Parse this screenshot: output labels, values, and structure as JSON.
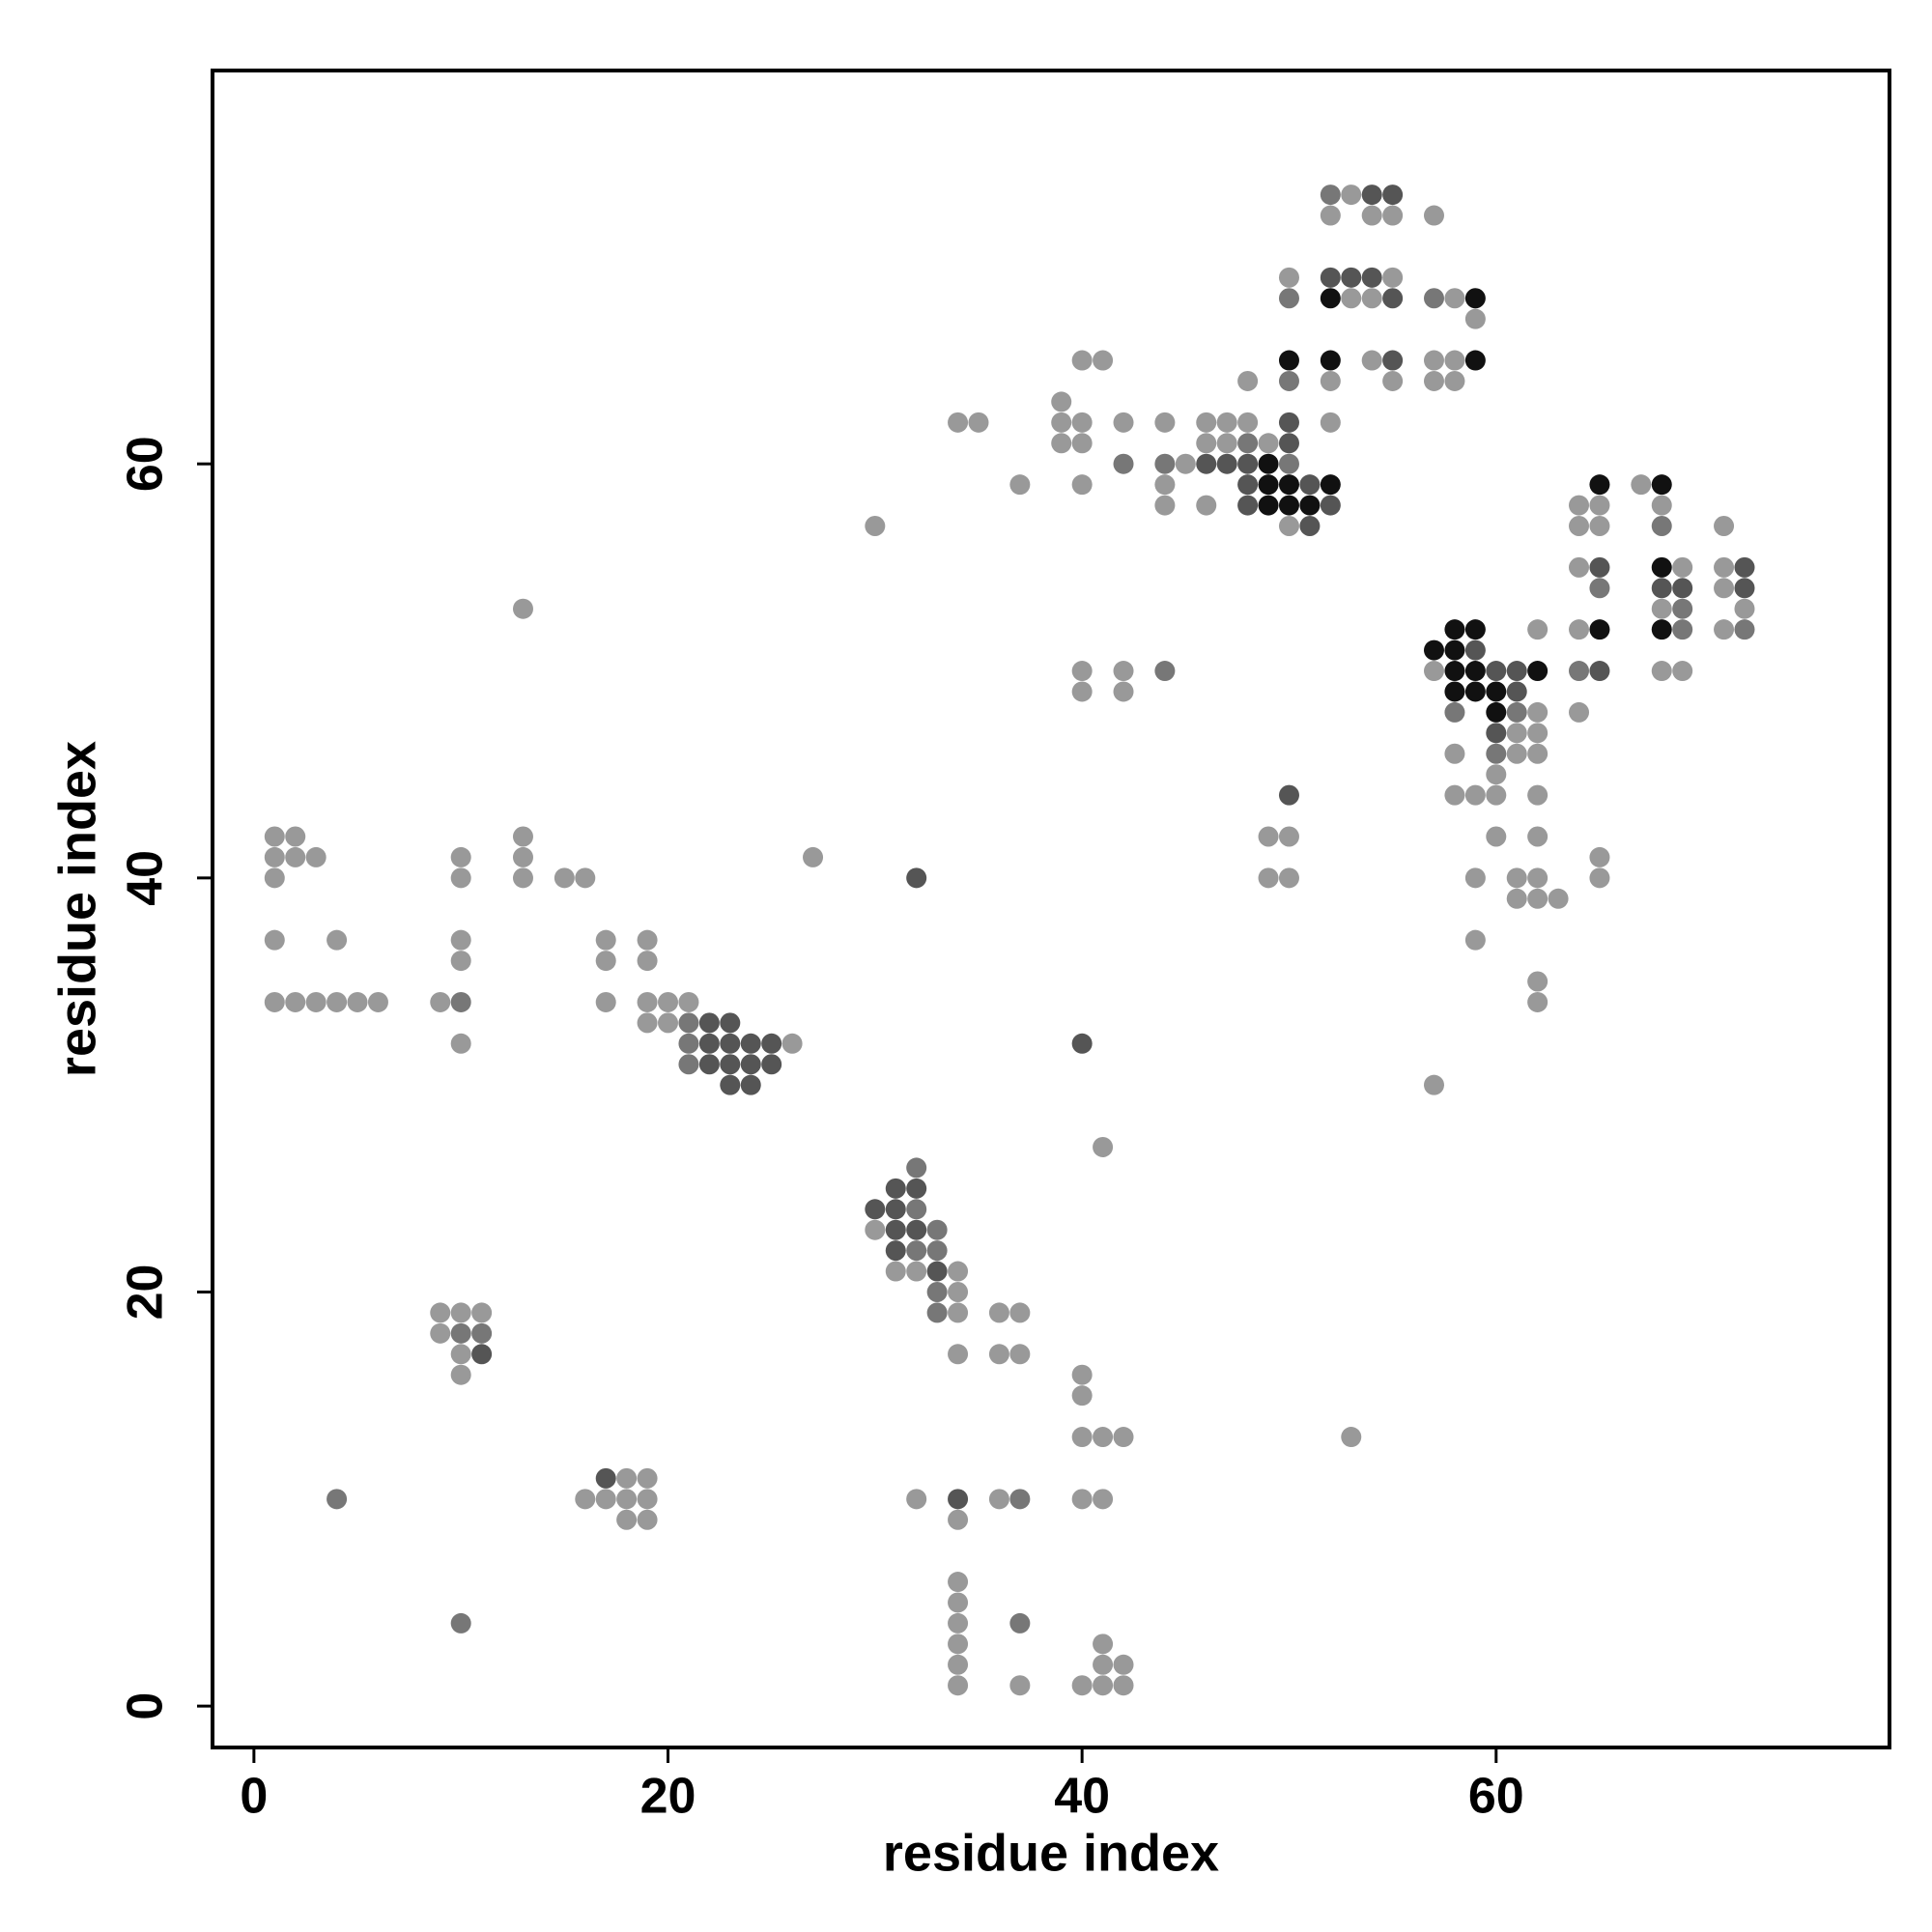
{
  "chart_data": {
    "type": "scatter",
    "x_label": "residue index",
    "y_label": "residue index",
    "xlim": [
      -2,
      79
    ],
    "ylim": [
      -2,
      79
    ],
    "xticks": [
      0,
      20,
      40,
      60
    ],
    "yticks": [
      0,
      20,
      40,
      60
    ],
    "series": [
      {
        "color": "#999999",
        "x": [
          1,
          2,
          3,
          4,
          5,
          6,
          1,
          4,
          1,
          1,
          2,
          3,
          1,
          2,
          9,
          10,
          10,
          10,
          10,
          10,
          13,
          13,
          13,
          13,
          15,
          16,
          17,
          17,
          17,
          19,
          19,
          19,
          19,
          20,
          20,
          21,
          26,
          27,
          30,
          9,
          10,
          11,
          9,
          10,
          10,
          16,
          17,
          18,
          19,
          18,
          19,
          18,
          19,
          30,
          31,
          32,
          34,
          34,
          34,
          34,
          36,
          36,
          37,
          37,
          32,
          34,
          36,
          34,
          34,
          34,
          34,
          34,
          34,
          37,
          40,
          40,
          40,
          41,
          42,
          40,
          41,
          41,
          40,
          41,
          41,
          41,
          42,
          42,
          53,
          57,
          34,
          35,
          37,
          39,
          39,
          39,
          40,
          41,
          40,
          40,
          40,
          42,
          40,
          40,
          42,
          42,
          44,
          44,
          44,
          45,
          46,
          46,
          46,
          47,
          47,
          48,
          48,
          49,
          49,
          49,
          50,
          50,
          50,
          50,
          52,
          52,
          52,
          53,
          53,
          54,
          54,
          54,
          55,
          55,
          55,
          57,
          57,
          57,
          57,
          58,
          58,
          58,
          58,
          58,
          59,
          59,
          59,
          59,
          60,
          60,
          60,
          61,
          61,
          61,
          61,
          62,
          62,
          62,
          62,
          62,
          62,
          62,
          62,
          62,
          62,
          63,
          64,
          64,
          64,
          64,
          64,
          65,
          65,
          65,
          65,
          67,
          68,
          68,
          68,
          69,
          69,
          71,
          71,
          71,
          71,
          72
        ],
        "y": [
          34,
          34,
          34,
          34,
          34,
          34,
          37,
          37,
          40,
          41,
          41,
          41,
          42,
          42,
          34,
          32,
          36,
          37,
          40,
          41,
          40,
          41,
          42,
          53,
          40,
          40,
          34,
          36,
          37,
          36,
          37,
          34,
          33,
          34,
          33,
          34,
          32,
          41,
          57,
          19,
          19,
          19,
          18,
          17,
          16,
          10,
          10,
          10,
          10,
          11,
          11,
          9,
          9,
          23,
          21,
          21,
          21,
          20,
          19,
          17,
          19,
          17,
          19,
          17,
          10,
          9,
          10,
          6,
          5,
          4,
          3,
          2,
          1,
          1,
          16,
          15,
          13,
          13,
          13,
          10,
          10,
          27,
          1,
          1,
          2,
          3,
          1,
          2,
          13,
          30,
          62,
          62,
          59,
          63,
          62,
          61,
          65,
          65,
          62,
          61,
          59,
          62,
          50,
          49,
          50,
          49,
          62,
          59,
          58,
          60,
          62,
          61,
          58,
          62,
          61,
          64,
          62,
          61,
          42,
          40,
          69,
          57,
          42,
          40,
          72,
          64,
          62,
          73,
          68,
          72,
          68,
          65,
          72,
          69,
          64,
          72,
          65,
          64,
          50,
          68,
          65,
          64,
          46,
          44,
          67,
          44,
          40,
          37,
          45,
          44,
          42,
          47,
          46,
          40,
          39,
          52,
          48,
          47,
          46,
          44,
          42,
          40,
          39,
          35,
          34,
          39,
          58,
          57,
          55,
          52,
          48,
          58,
          57,
          41,
          40,
          59,
          58,
          53,
          50,
          55,
          50,
          57,
          55,
          54,
          52,
          53
        ]
      },
      {
        "color": "#777777",
        "x": [
          10,
          4,
          10,
          11,
          10,
          21,
          21,
          21,
          32,
          32,
          32,
          33,
          33,
          33,
          33,
          37,
          37,
          42,
          44,
          44,
          48,
          50,
          50,
          50,
          52,
          57,
          58,
          60,
          61,
          64,
          65,
          68,
          69,
          69,
          72
        ],
        "y": [
          4,
          10,
          18,
          18,
          34,
          33,
          32,
          31,
          26,
          24,
          22,
          23,
          22,
          20,
          19,
          10,
          4,
          60,
          50,
          60,
          61,
          60,
          68,
          64,
          73,
          68,
          48,
          46,
          48,
          50,
          54,
          57,
          53,
          52,
          52
        ]
      },
      {
        "color": "#555555",
        "x": [
          22,
          22,
          22,
          23,
          23,
          23,
          23,
          24,
          24,
          24,
          25,
          25,
          30,
          31,
          31,
          31,
          31,
          32,
          32,
          33,
          32,
          40,
          34,
          46,
          47,
          48,
          48,
          48,
          50,
          50,
          50,
          51,
          51,
          52,
          52,
          53,
          54,
          54,
          55,
          55,
          55,
          59,
          60,
          60,
          61,
          61,
          65,
          65,
          68,
          69,
          72,
          72,
          11,
          17
        ],
        "y": [
          33,
          32,
          31,
          33,
          32,
          31,
          30,
          32,
          31,
          30,
          32,
          31,
          24,
          25,
          24,
          23,
          22,
          25,
          23,
          21,
          40,
          32,
          10,
          60,
          60,
          60,
          59,
          58,
          62,
          61,
          44,
          59,
          57,
          69,
          58,
          69,
          73,
          69,
          73,
          68,
          65,
          51,
          50,
          47,
          50,
          49,
          55,
          50,
          54,
          54,
          55,
          54,
          17,
          11
        ]
      },
      {
        "color": "#111111",
        "x": [
          49,
          49,
          49,
          50,
          50,
          50,
          51,
          52,
          52,
          52,
          57,
          58,
          58,
          58,
          58,
          59,
          59,
          59,
          59,
          59,
          60,
          60,
          62,
          65,
          65,
          68,
          68,
          68
        ],
        "y": [
          60,
          59,
          58,
          65,
          59,
          58,
          58,
          68,
          65,
          59,
          51,
          52,
          51,
          50,
          49,
          68,
          65,
          52,
          50,
          49,
          49,
          48,
          50,
          59,
          52,
          59,
          55,
          52
        ]
      }
    ]
  }
}
